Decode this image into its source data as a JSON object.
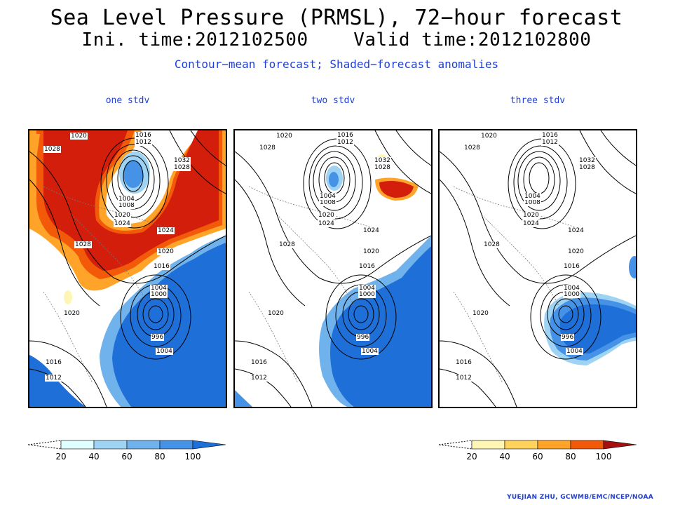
{
  "header": {
    "title": "Sea Level Pressure (PRMSL), 72−hour forecast",
    "init_valid": "Ini. time:2012102500    Valid time:2012102800",
    "subtitle": "Contour−mean forecast; Shaded−forecast anomalies"
  },
  "panels": [
    {
      "label": "one stdv"
    },
    {
      "label": "two stdv"
    },
    {
      "label": "three stdv"
    }
  ],
  "contour_labels": [
    "1020",
    "1016",
    "1012",
    "1028",
    "1032",
    "1028",
    "1008",
    "1004",
    "1020",
    "1024",
    "1028",
    "1024",
    "1020",
    "1016",
    "1004",
    "1000",
    "996",
    "1004",
    "1020",
    "1016",
    "1012"
  ],
  "colorbars": {
    "negative": {
      "ticks": [
        "20",
        "40",
        "60",
        "80",
        "100"
      ],
      "colors": [
        "#e0ffff",
        "#9ed3f4",
        "#6fb2ec",
        "#4592e6",
        "#1f6fd8"
      ]
    },
    "positive": {
      "ticks": [
        "20",
        "40",
        "60",
        "80",
        "100"
      ],
      "colors": [
        "#fff5b4",
        "#ffd25a",
        "#ffa428",
        "#f25a0a",
        "#d21e0a",
        "#a50f0f"
      ]
    }
  },
  "credit": "YUEJIAN ZHU, GCWMB/EMC/NCEP/NOAA"
}
